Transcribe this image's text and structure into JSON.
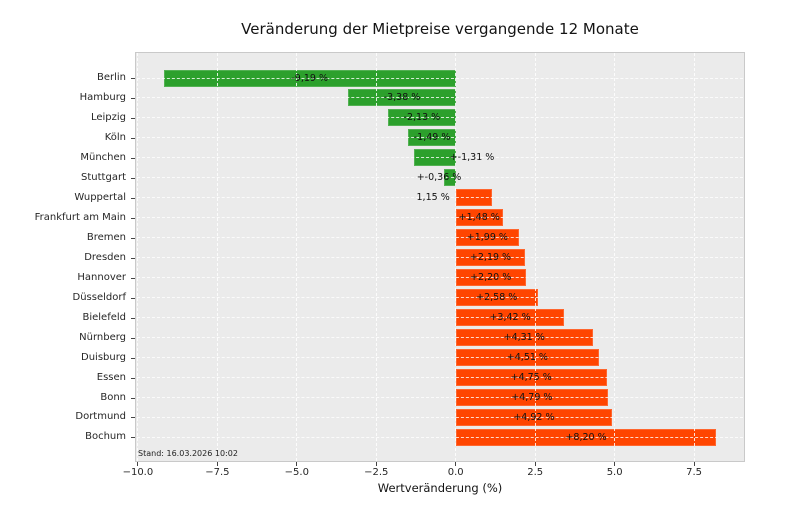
{
  "chart_data": {
    "type": "bar",
    "orientation": "horizontal",
    "title": "Veränderung der Mietpreise vergangende 12 Monate",
    "xlabel": "Wertveränderung (%)",
    "annotation": "Stand: 16.03.2026 10:02",
    "xlim": [
      -10.06,
      9.07
    ],
    "grid": true,
    "plot_bg": "#ebebeb",
    "grid_color": "#ffffff",
    "negative_color": "#2ca02c",
    "positive_color": "#ff4500",
    "xticks": [
      {
        "value": -10.0,
        "label": "−10.0"
      },
      {
        "value": -7.5,
        "label": "−7.5"
      },
      {
        "value": -5.0,
        "label": "−5.0"
      },
      {
        "value": -2.5,
        "label": "−2.5"
      },
      {
        "value": 0.0,
        "label": "0.0"
      },
      {
        "value": 2.5,
        "label": "2.5"
      },
      {
        "value": 5.0,
        "label": "5.0"
      },
      {
        "value": 7.5,
        "label": "7.5"
      }
    ],
    "bars": [
      {
        "name": "Berlin",
        "value": -9.19,
        "label": "-9,19 %",
        "placement": "center"
      },
      {
        "name": "Hamburg",
        "value": -3.38,
        "label": "-3,38 %",
        "placement": "center"
      },
      {
        "name": "Leipzig",
        "value": -2.13,
        "label": "-2,13 %",
        "placement": "center"
      },
      {
        "name": "Köln",
        "value": -1.49,
        "label": "-1,49 %",
        "placement": "center"
      },
      {
        "name": "München",
        "value": -1.31,
        "label": "+-1,31 %",
        "placement": "after_zero"
      },
      {
        "name": "Stuttgart",
        "value": -0.36,
        "label": "+-0,36 %",
        "placement": "straddle_zero"
      },
      {
        "name": "Wuppertal",
        "value": 1.15,
        "label": "1,15 %",
        "placement": "before_zero"
      },
      {
        "name": "Frankfurt am Main",
        "value": 1.48,
        "label": "+1,48 %",
        "placement": "center"
      },
      {
        "name": "Bremen",
        "value": 1.99,
        "label": "+1,99 %",
        "placement": "center"
      },
      {
        "name": "Dresden",
        "value": 2.19,
        "label": "+2,19 %",
        "placement": "center"
      },
      {
        "name": "Hannover",
        "value": 2.2,
        "label": "+2,20 %",
        "placement": "center"
      },
      {
        "name": "Düsseldorf",
        "value": 2.58,
        "label": "+2,58 %",
        "placement": "center"
      },
      {
        "name": "Bielefeld",
        "value": 3.42,
        "label": "+3,42 %",
        "placement": "center"
      },
      {
        "name": "Nürnberg",
        "value": 4.31,
        "label": "+4,31 %",
        "placement": "center"
      },
      {
        "name": "Duisburg",
        "value": 4.51,
        "label": "+4,51 %",
        "placement": "center"
      },
      {
        "name": "Essen",
        "value": 4.75,
        "label": "+4,75 %",
        "placement": "center"
      },
      {
        "name": "Bonn",
        "value": 4.79,
        "label": "+4,79 %",
        "placement": "center"
      },
      {
        "name": "Dortmund",
        "value": 4.92,
        "label": "+4,92 %",
        "placement": "center"
      },
      {
        "name": "Bochum",
        "value": 8.2,
        "label": "+8,20 %",
        "placement": "center"
      }
    ]
  }
}
